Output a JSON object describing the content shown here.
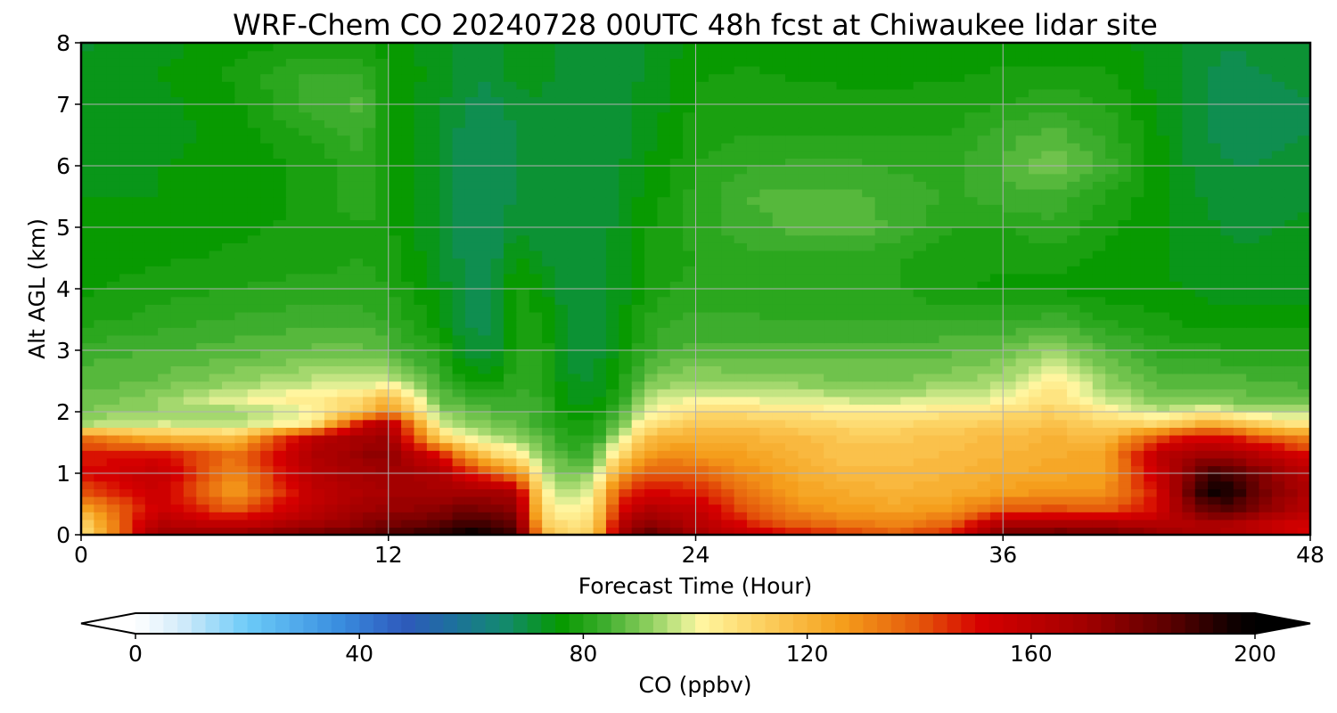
{
  "chart_data": {
    "type": "heatmap",
    "title": "WRF-Chem CO  20240728 00UTC 48h fcst at Chiwaukee lidar site",
    "xlabel": "Forecast Time (Hour)",
    "ylabel": "Alt AGL (km)",
    "xlim": [
      0,
      48
    ],
    "ylim": [
      0,
      8
    ],
    "xticks": [
      "0",
      "12",
      "24",
      "36",
      "48"
    ],
    "yticks": [
      "0",
      "1",
      "2",
      "3",
      "4",
      "5",
      "6",
      "7",
      "8"
    ],
    "grid": true,
    "x_hours": [
      0,
      3,
      6,
      9,
      11,
      12,
      14,
      15,
      16,
      17,
      18,
      19,
      20,
      21,
      22,
      23,
      24,
      26,
      28,
      30,
      32,
      34,
      36,
      38,
      40,
      42,
      43,
      44,
      45,
      46,
      48
    ],
    "y_km": [
      0.0,
      0.15,
      0.4,
      0.7,
      1.0,
      1.3,
      1.6,
      1.8,
      2.0,
      2.2,
      2.5,
      3.0,
      3.5,
      4.0,
      4.5,
      5.0,
      5.5,
      6.0,
      6.5,
      7.0,
      7.5,
      8.0
    ],
    "values_ppbv": [
      [
        105,
        170,
        175,
        180,
        185,
        190,
        192,
        198,
        196,
        190,
        120,
        110,
        112,
        165,
        185,
        178,
        168,
        160,
        150,
        145,
        140,
        150,
        178,
        182,
        180,
        175,
        170,
        168,
        165,
        160,
        150
      ],
      [
        108,
        165,
        160,
        170,
        175,
        180,
        185,
        192,
        190,
        185,
        115,
        108,
        110,
        160,
        178,
        172,
        164,
        150,
        140,
        135,
        132,
        140,
        170,
        172,
        170,
        165,
        162,
        165,
        162,
        158,
        150
      ],
      [
        120,
        155,
        140,
        160,
        170,
        172,
        175,
        180,
        178,
        175,
        108,
        100,
        105,
        150,
        165,
        162,
        158,
        140,
        130,
        126,
        125,
        128,
        140,
        142,
        140,
        150,
        170,
        182,
        185,
        175,
        160
      ],
      [
        140,
        155,
        125,
        158,
        165,
        168,
        168,
        170,
        168,
        165,
        103,
        94,
        100,
        140,
        152,
        150,
        148,
        135,
        125,
        122,
        120,
        122,
        126,
        128,
        128,
        150,
        176,
        196,
        195,
        180,
        165
      ],
      [
        150,
        158,
        130,
        162,
        168,
        170,
        165,
        150,
        140,
        130,
        98,
        88,
        92,
        125,
        138,
        140,
        138,
        130,
        122,
        118,
        118,
        120,
        122,
        124,
        125,
        155,
        172,
        190,
        188,
        178,
        160
      ],
      [
        148,
        150,
        135,
        165,
        172,
        175,
        150,
        128,
        112,
        105,
        92,
        84,
        85,
        108,
        125,
        130,
        128,
        125,
        120,
        116,
        116,
        118,
        120,
        122,
        125,
        160,
        165,
        170,
        168,
        162,
        150
      ],
      [
        135,
        120,
        115,
        160,
        168,
        170,
        110,
        100,
        95,
        92,
        86,
        80,
        80,
        96,
        115,
        120,
        122,
        120,
        118,
        114,
        114,
        116,
        118,
        120,
        118,
        140,
        150,
        150,
        148,
        140,
        130
      ],
      [
        95,
        98,
        96,
        105,
        155,
        165,
        98,
        92,
        90,
        88,
        84,
        78,
        78,
        88,
        105,
        112,
        115,
        115,
        112,
        110,
        110,
        112,
        114,
        116,
        112,
        110,
        115,
        125,
        120,
        112,
        105
      ],
      [
        90,
        93,
        92,
        100,
        115,
        130,
        92,
        88,
        86,
        85,
        82,
        76,
        76,
        84,
        98,
        104,
        108,
        108,
        106,
        104,
        104,
        106,
        108,
        112,
        104,
        96,
        98,
        104,
        98,
        95,
        95
      ],
      [
        88,
        92,
        100,
        104,
        110,
        120,
        88,
        84,
        82,
        84,
        82,
        74,
        74,
        80,
        94,
        99,
        100,
        100,
        98,
        97,
        97,
        98,
        100,
        108,
        98,
        90,
        90,
        92,
        90,
        88,
        88
      ],
      [
        86,
        88,
        92,
        96,
        96,
        98,
        84,
        78,
        76,
        82,
        80,
        73,
        72,
        78,
        88,
        92,
        93,
        92,
        91,
        90,
        90,
        92,
        94,
        104,
        92,
        86,
        86,
        86,
        86,
        85,
        84
      ],
      [
        84,
        85,
        86,
        88,
        88,
        86,
        80,
        72,
        70,
        80,
        80,
        72,
        71,
        76,
        82,
        85,
        86,
        86,
        86,
        86,
        86,
        87,
        88,
        93,
        86,
        82,
        81,
        81,
        80,
        80,
        80
      ],
      [
        79,
        81,
        83,
        84,
        84,
        82,
        76,
        70,
        69,
        78,
        78,
        71,
        71,
        74,
        80,
        82,
        83,
        83,
        82,
        82,
        82,
        82,
        82,
        84,
        80,
        78,
        77,
        76,
        76,
        76,
        76
      ],
      [
        77,
        79,
        80,
        81,
        81,
        80,
        74,
        69,
        69,
        78,
        76,
        71,
        71,
        73,
        78,
        80,
        81,
        81,
        80,
        80,
        80,
        78,
        77,
        77,
        76,
        76,
        75,
        74,
        74,
        74,
        74
      ],
      [
        76,
        77,
        78,
        79,
        80,
        79,
        73,
        69,
        68,
        76,
        72,
        71,
        71,
        73,
        77,
        79,
        80,
        82,
        82,
        81,
        80,
        78,
        78,
        78,
        77,
        76,
        74,
        73,
        73,
        73,
        74
      ],
      [
        75,
        76,
        77,
        78,
        80,
        78,
        72,
        68,
        68,
        72,
        70,
        70,
        71,
        73,
        77,
        79,
        81,
        84,
        86,
        87,
        84,
        80,
        80,
        82,
        78,
        76,
        74,
        73,
        72,
        72,
        73
      ],
      [
        75,
        75,
        76,
        78,
        82,
        78,
        72,
        68,
        68,
        70,
        70,
        70,
        71,
        72,
        76,
        78,
        81,
        85,
        86,
        86,
        84,
        82,
        84,
        84,
        80,
        76,
        74,
        72,
        71,
        71,
        72
      ],
      [
        74,
        75,
        76,
        78,
        82,
        77,
        72,
        68,
        68,
        70,
        70,
        70,
        70,
        72,
        75,
        77,
        80,
        82,
        83,
        83,
        82,
        82,
        85,
        90,
        84,
        76,
        73,
        71,
        70,
        70,
        71
      ],
      [
        73,
        74,
        76,
        80,
        84,
        77,
        72,
        69,
        68,
        70,
        71,
        70,
        70,
        71,
        74,
        76,
        79,
        80,
        80,
        80,
        80,
        80,
        84,
        86,
        82,
        76,
        72,
        70,
        69,
        69,
        70
      ],
      [
        73,
        74,
        77,
        84,
        86,
        77,
        73,
        70,
        69,
        71,
        72,
        70,
        70,
        71,
        74,
        75,
        78,
        79,
        79,
        78,
        78,
        79,
        80,
        82,
        80,
        75,
        72,
        70,
        68,
        68,
        70
      ],
      [
        74,
        75,
        78,
        83,
        82,
        77,
        74,
        71,
        70,
        74,
        74,
        70,
        70,
        70,
        73,
        75,
        77,
        78,
        77,
        77,
        77,
        77,
        78,
        78,
        78,
        74,
        72,
        70,
        69,
        70,
        71
      ],
      [
        72,
        74,
        76,
        78,
        78,
        76,
        74,
        72,
        71,
        75,
        75,
        70,
        70,
        70,
        72,
        74,
        76,
        76,
        76,
        76,
        76,
        76,
        76,
        76,
        76,
        74,
        72,
        71,
        70,
        71,
        72
      ]
    ],
    "colorbar": {
      "label": "CO  (ppbv)",
      "min": 0,
      "max": 200,
      "tick_values": [
        0,
        40,
        80,
        120,
        160,
        200
      ],
      "tick_labels": [
        "0",
        "40",
        "80",
        "120",
        "160",
        "200"
      ],
      "extend": "both",
      "stops": [
        [
          0,
          "#ffffff"
        ],
        [
          8,
          "#d4ecfa"
        ],
        [
          20,
          "#6ccbf8"
        ],
        [
          36,
          "#3a8fe0"
        ],
        [
          48,
          "#2e59bc"
        ],
        [
          56,
          "#1e6ea0"
        ],
        [
          66,
          "#138a6e"
        ],
        [
          76,
          "#069900"
        ],
        [
          84,
          "#3fae2e"
        ],
        [
          92,
          "#8fd060"
        ],
        [
          98,
          "#d8ec90"
        ],
        [
          101,
          "#fff6a0"
        ],
        [
          112,
          "#fcd060"
        ],
        [
          126,
          "#f59f1c"
        ],
        [
          140,
          "#e5580a"
        ],
        [
          151,
          "#d60000"
        ],
        [
          170,
          "#a00000"
        ],
        [
          185,
          "#5a0000"
        ],
        [
          196,
          "#100000"
        ],
        [
          200,
          "#000000"
        ]
      ]
    }
  }
}
